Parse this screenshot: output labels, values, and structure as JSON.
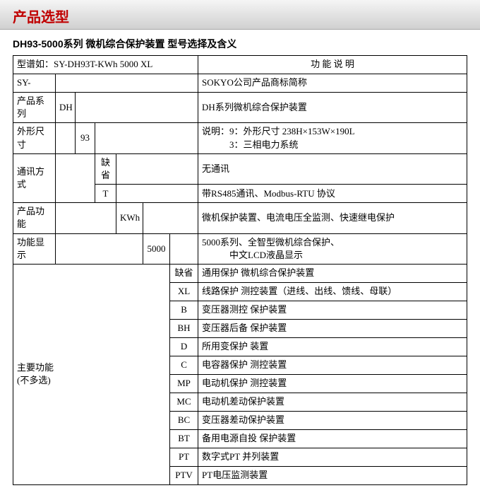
{
  "header": {
    "title": "产品选型"
  },
  "subtitle": "DH93-5000系列 微机综合保护装置 型号选择及含义",
  "model_row": {
    "label": "型谱如：",
    "example": "SY-DH93T-KWh 5000 XL",
    "func_header": "功 能  说 明"
  },
  "rows": {
    "sy": {
      "label": "SY-",
      "desc": "SOKYO公司产品商标简称"
    },
    "series": {
      "label": "产品系列",
      "code": "DH",
      "desc": "DH系列微机综合保护装置"
    },
    "size": {
      "label": "外形尺寸",
      "code": "93",
      "desc1": "说明：9：外形尺寸  238H×153W×190L",
      "desc2": "            3：三相电力系统"
    },
    "comm": {
      "label": "通讯方式",
      "opt1": {
        "code": "缺省",
        "desc": "无通讯"
      },
      "opt2": {
        "code": "T",
        "desc": "带RS485通讯、Modbus-RTU 协议"
      }
    },
    "func": {
      "label": "产品功能",
      "code": "KWh",
      "desc": "微机保护装置、电流电压全监测、快速继电保护"
    },
    "disp": {
      "label": "功能显示",
      "code": "5000",
      "desc1": "5000系列、全智型微机综合保护、",
      "desc2": "            中文LCD液晶显示"
    },
    "main": {
      "label1": "主要功能",
      "label2": "(不多选)",
      "items": [
        {
          "code": "缺省",
          "desc": "通用保护  微机综合保护装置"
        },
        {
          "code": "XL",
          "desc": "线路保护  测控装置（进线、出线、馈线、母联）"
        },
        {
          "code": "B",
          "desc": "变压器测控  保护装置"
        },
        {
          "code": "BH",
          "desc": "变压器后备  保护装置"
        },
        {
          "code": "D",
          "desc": "所用变保护  装置"
        },
        {
          "code": "C",
          "desc": "电容器保护  测控装置"
        },
        {
          "code": "MP",
          "desc": "电动机保护  测控装置"
        },
        {
          "code": "MC",
          "desc": "电动机差动保护装置"
        },
        {
          "code": "BC",
          "desc": "变压器差动保护装置"
        },
        {
          "code": "BT",
          "desc": "备用电源自投  保护装置"
        },
        {
          "code": "PT",
          "desc": "数字式PT  并列装置"
        },
        {
          "code": "PTV",
          "desc": "PT电压监测装置"
        }
      ]
    }
  }
}
